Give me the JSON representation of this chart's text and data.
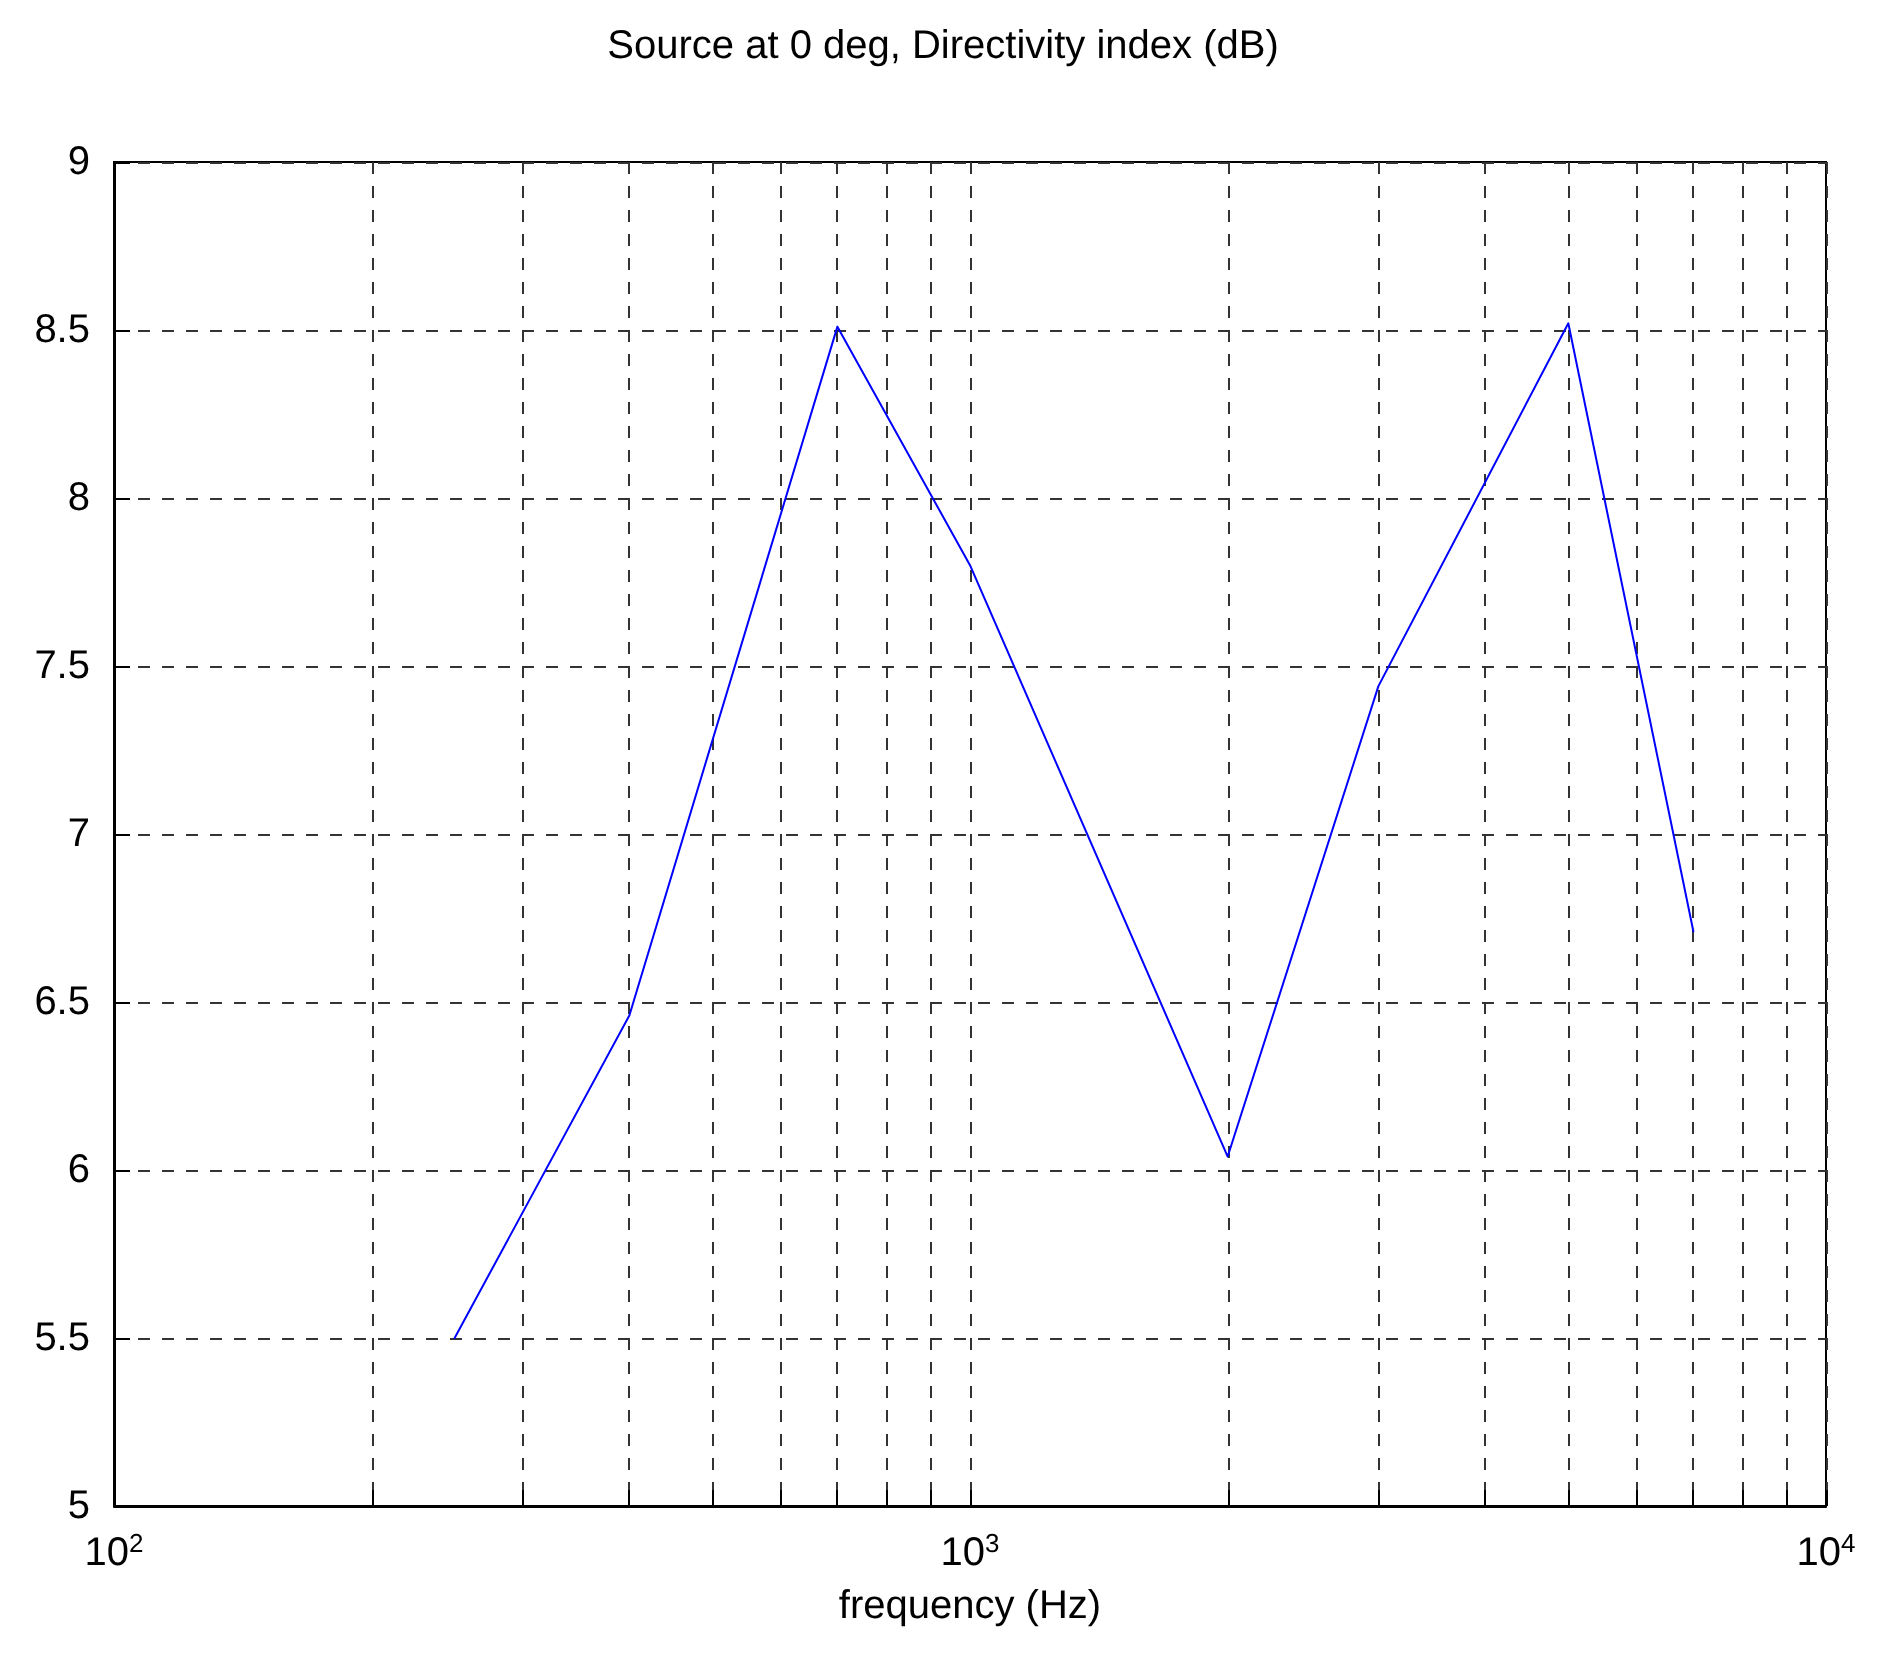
{
  "chart_data": {
    "type": "line",
    "title": "Source at 0 deg, Directivity index (dB)",
    "xlabel": "frequency (Hz)",
    "x": [
      250,
      400,
      700,
      1000,
      2000,
      3000,
      5000,
      7000
    ],
    "series": [
      {
        "color": "#0000ff",
        "values": [
          5.5,
          6.46,
          8.51,
          7.8,
          6.04,
          7.44,
          8.52,
          6.71
        ]
      }
    ],
    "log": "x",
    "xlim": [
      100,
      10000
    ],
    "xticks": [
      {
        "value": 100,
        "label": "10$^{2}$"
      },
      {
        "value": 200,
        "label": null
      },
      {
        "value": 300,
        "label": null
      },
      {
        "value": 400,
        "label": null
      },
      {
        "value": 500,
        "label": null
      },
      {
        "value": 600,
        "label": null
      },
      {
        "value": 700,
        "label": null
      },
      {
        "value": 800,
        "label": null
      },
      {
        "value": 900,
        "label": null
      },
      {
        "value": 1000,
        "label": "10$^{3}$"
      },
      {
        "value": 2000,
        "label": null
      },
      {
        "value": 3000,
        "label": null
      },
      {
        "value": 4000,
        "label": null
      },
      {
        "value": 5000,
        "label": null
      },
      {
        "value": 6000,
        "label": null
      },
      {
        "value": 7000,
        "label": null
      },
      {
        "value": 8000,
        "label": null
      },
      {
        "value": 9000,
        "label": null
      },
      {
        "value": 10000,
        "label": "10$^{4}$"
      }
    ],
    "ylim": [
      5,
      9
    ],
    "yticks": [
      5,
      5.5,
      6,
      6.5,
      7,
      7.5,
      8,
      8.5,
      9
    ],
    "grid": true,
    "line_style": "solid",
    "marker": "none"
  }
}
